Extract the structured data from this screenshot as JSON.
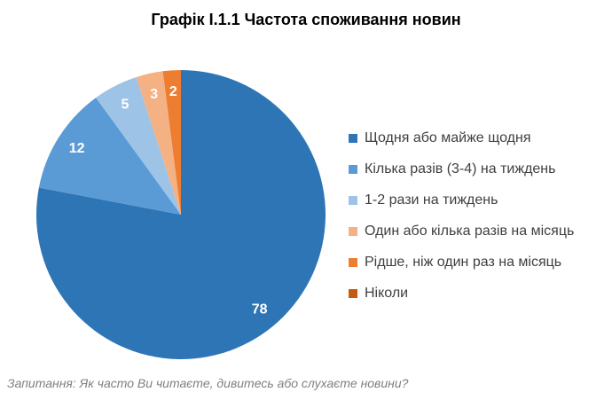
{
  "title": "Графік І.1.1 Частота споживання новин",
  "footer_note": "Запитання: Як часто Ви читаєте, дивитесь або слухаєте новини?",
  "chart_data": {
    "type": "pie",
    "title": "Графік І.1.1 Частота споживання новин",
    "categories": [
      "Щодня або майже щодня",
      "Кілька разів (3-4) на тиждень",
      "1-2 рази на тиждень",
      "Один або кілька разів на місяць",
      "Рідше, ніж один раз на місяць",
      "Ніколи"
    ],
    "values": [
      78,
      12,
      5,
      3,
      2,
      0
    ],
    "colors": [
      "#2E75B6",
      "#5B9BD5",
      "#9DC3E6",
      "#F4B183",
      "#ED7D31",
      "#C55A11"
    ],
    "total": 100,
    "legend_position": "right",
    "data_labels": "inside",
    "data_label_color": "#FFFFFF",
    "start_angle_deg": 0,
    "direction": "clockwise"
  }
}
